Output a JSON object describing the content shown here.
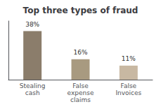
{
  "chart_data": {
    "type": "bar",
    "title": "Top three types of fraud",
    "categories": [
      "Stealing\ncash",
      "False\nexpense\nclaims",
      "False\nInvoices"
    ],
    "values": [
      38,
      16,
      11
    ],
    "value_labels": [
      "38%",
      "16%",
      "11%"
    ],
    "colors": [
      "#8B7D6B",
      "#A89A80",
      "#C8B8A2"
    ],
    "ylim": [
      0,
      46
    ],
    "grid": false,
    "data_labels": true,
    "tick_labels": "x"
  }
}
